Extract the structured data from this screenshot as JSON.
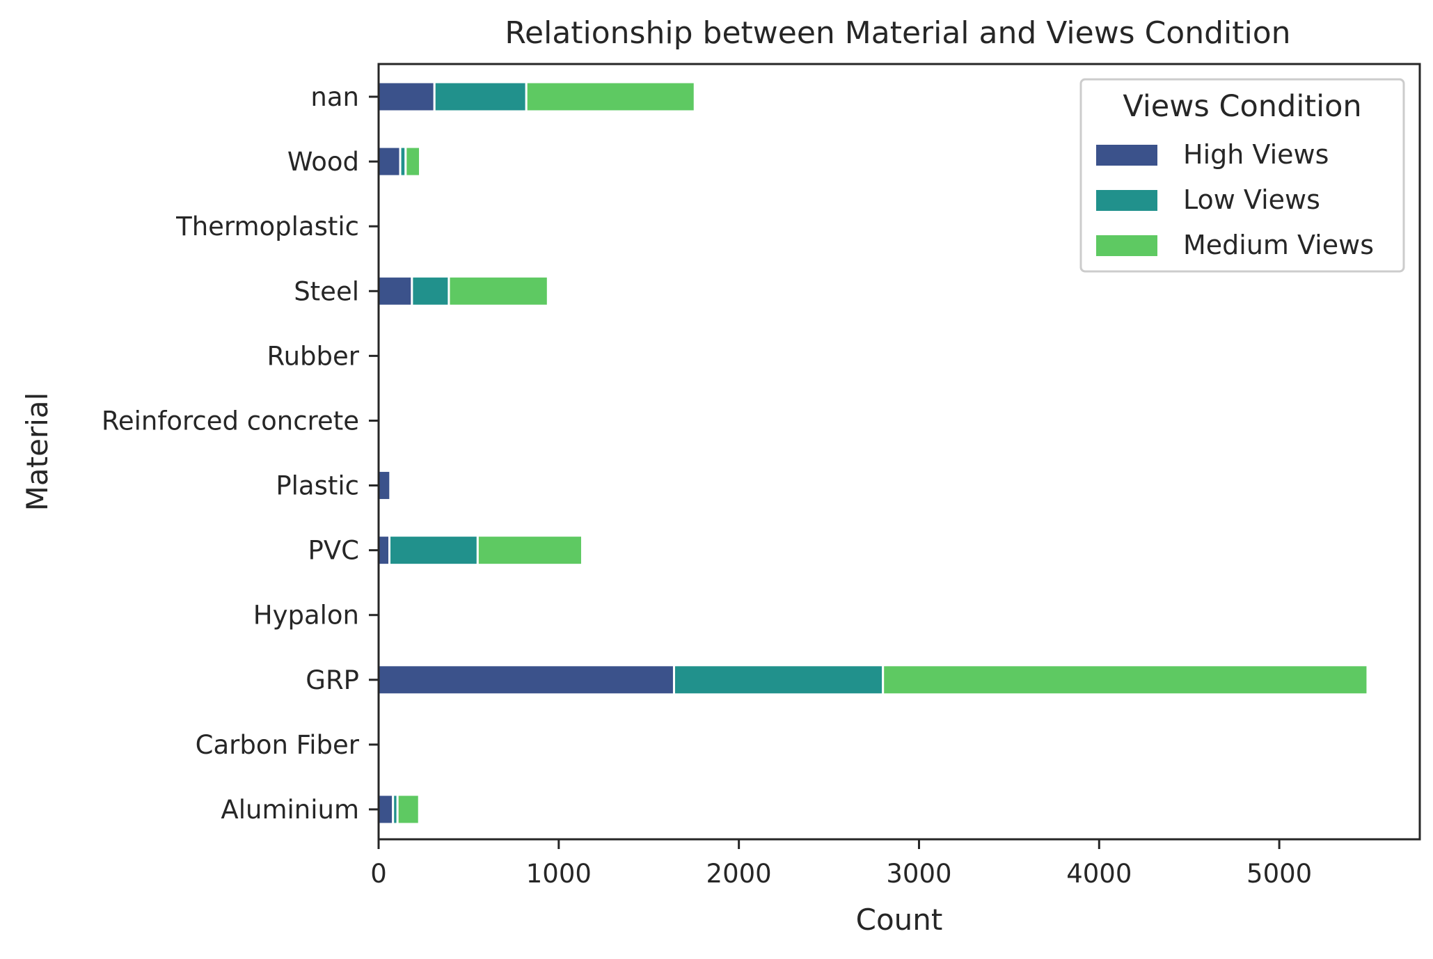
{
  "chart_data": {
    "type": "bar",
    "orientation": "horizontal",
    "stacked": true,
    "title": "Relationship between Material and Views Condition",
    "xlabel": "Count",
    "ylabel": "Material",
    "categories": [
      "Aluminium",
      "Carbon Fiber",
      "GRP",
      "Hypalon",
      "PVC",
      "Plastic",
      "Reinforced concrete",
      "Rubber",
      "Steel",
      "Thermoplastic",
      "Wood",
      "nan"
    ],
    "series": [
      {
        "name": "High Views",
        "color": "#3b528b",
        "values": [
          80,
          0,
          1640,
          0,
          60,
          65,
          0,
          0,
          185,
          0,
          120,
          310
        ]
      },
      {
        "name": "Low Views",
        "color": "#21918c",
        "values": [
          25,
          0,
          1160,
          0,
          490,
          0,
          0,
          0,
          205,
          0,
          30,
          510
        ]
      },
      {
        "name": "Medium Views",
        "color": "#5ec962",
        "values": [
          120,
          0,
          2690,
          0,
          580,
          0,
          0,
          0,
          550,
          0,
          80,
          935
        ]
      }
    ],
    "xlim": [
      0,
      5780
    ],
    "xticks": [
      0,
      1000,
      2000,
      3000,
      4000,
      5000
    ],
    "xtick_labels": [
      "0",
      "1000",
      "2000",
      "3000",
      "4000",
      "5000"
    ],
    "legend": {
      "title": "Views Condition",
      "position": "upper-right"
    },
    "grid": false
  }
}
